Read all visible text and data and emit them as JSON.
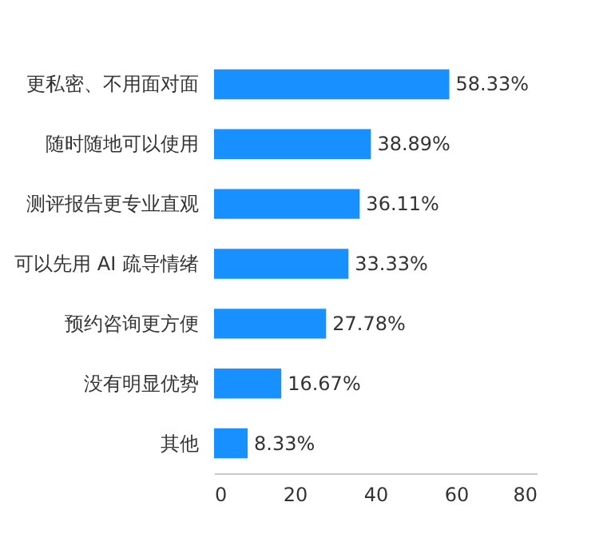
{
  "chart_data": {
    "type": "bar",
    "orientation": "horizontal",
    "categories": [
      "更私密、不用面对面",
      "随时随地可以使用",
      "测评报告更专业直观",
      "可以先用 AI 疏导情绪",
      "预约咨询更方便",
      "没有明显优势",
      "其他"
    ],
    "values": [
      58.33,
      38.89,
      36.11,
      33.33,
      27.78,
      16.67,
      8.33
    ],
    "value_labels": [
      "58.33%",
      "38.89%",
      "36.11%",
      "33.33%",
      "27.78%",
      "16.67%",
      "8.33%"
    ],
    "color": "#1890ff",
    "xlim": [
      0,
      80
    ],
    "xticks": [
      0,
      20,
      40,
      60,
      80
    ],
    "grid": false
  }
}
